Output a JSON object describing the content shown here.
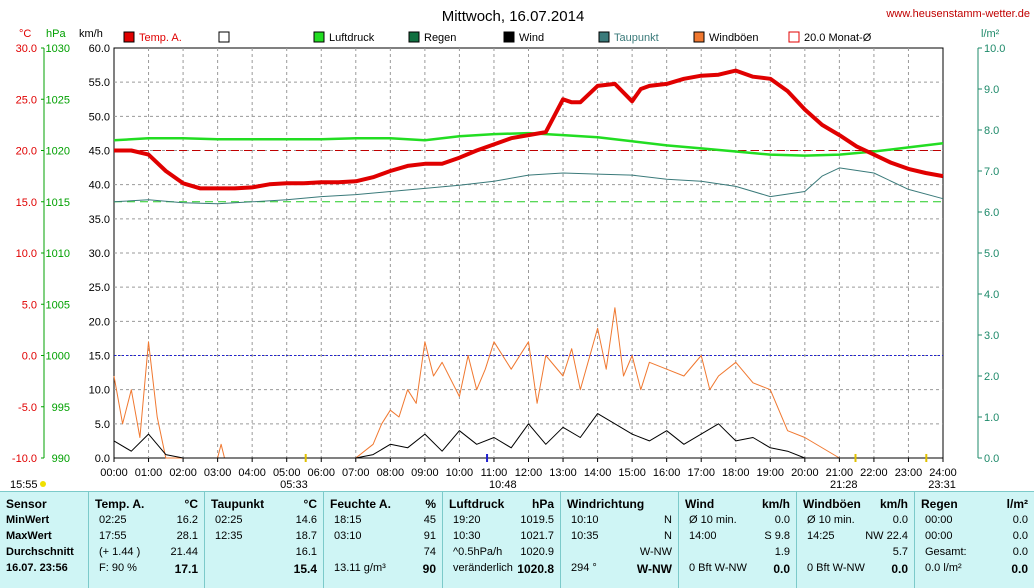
{
  "chart_data": {
    "type": "line",
    "title": "Mittwoch, 16.07.2014",
    "site": "www.heusenstamm-wetter.de",
    "unit_labels": {
      "temp": "°C",
      "pressure": "hPa",
      "wind": "km/h",
      "rain": "l/m²"
    },
    "axes": {
      "temp": {
        "min": -10,
        "max": 30,
        "ticks": [
          "30.0",
          "25.0",
          "20.0",
          "15.0",
          "10.0",
          "5.0",
          "0.0",
          "-5.0",
          "-10.0"
        ],
        "color": "#e00000"
      },
      "pressure": {
        "min": 990,
        "max": 1030,
        "ticks": [
          "1030",
          "1025",
          "1020",
          "1015",
          "1010",
          "1005",
          "1000",
          "995",
          "990"
        ],
        "color": "#00a000"
      },
      "wind": {
        "min": 0,
        "max": 60,
        "ticks": [
          "60.0",
          "55.0",
          "50.0",
          "45.0",
          "40.0",
          "35.0",
          "30.0",
          "25.0",
          "20.0",
          "15.0",
          "10.0",
          "5.0",
          "0.0"
        ],
        "color": "#000000"
      },
      "rain": {
        "min": 0,
        "max": 10,
        "ticks": [
          "10.0",
          "9.0",
          "8.0",
          "7.0",
          "6.0",
          "5.0",
          "4.0",
          "3.0",
          "2.0",
          "1.0",
          "0.0"
        ],
        "color": "#1e8a6a"
      }
    },
    "x_ticks": [
      "00:00",
      "01:00",
      "02:00",
      "03:00",
      "04:00",
      "05:00",
      "06:00",
      "07:00",
      "08:00",
      "09:00",
      "10:00",
      "11:00",
      "12:00",
      "13:00",
      "14:00",
      "15:00",
      "16:00",
      "17:00",
      "18:00",
      "19:00",
      "20:00",
      "21:00",
      "22:00",
      "23:00",
      "24:00"
    ],
    "legend": [
      {
        "label": "Temp. A.",
        "color": "#e00000",
        "style": "filled"
      },
      {
        "label": "",
        "color": "#ffffff",
        "style": "empty"
      },
      {
        "label": "Luftdruck",
        "color": "#22dd22",
        "style": "filled"
      },
      {
        "label": "Regen",
        "color": "#107040",
        "style": "filled"
      },
      {
        "label": "Wind",
        "color": "#000000",
        "style": "filled"
      },
      {
        "label": "Taupunkt",
        "color": "#3a7a7a",
        "style": "filled"
      },
      {
        "label": "Windböen",
        "color": "#f07830",
        "style": "filled"
      },
      {
        "label": "20.0 Monat-Ø",
        "color": "#e00000",
        "style": "outline"
      }
    ],
    "reference_lines": {
      "temp_month_avg": 20.0,
      "dew_line": 15.0,
      "pressure_line": 1000
    },
    "sun_markers": {
      "sunrise_prev": "15:55",
      "sunrise": "05:33",
      "noon": "10:48",
      "sunset": "21:28",
      "moon": "23:31"
    },
    "series": [
      {
        "name": "Temp. A.",
        "axis": "temp",
        "color": "#e00000",
        "x": [
          0,
          0.5,
          1,
          1.5,
          2,
          2.5,
          3,
          3.5,
          4,
          4.5,
          5,
          5.5,
          6,
          6.5,
          7,
          7.5,
          8,
          8.5,
          9,
          9.5,
          10,
          10.5,
          11,
          11.5,
          12,
          12.5,
          13,
          13.25,
          13.5,
          14,
          14.5,
          15,
          15.25,
          15.5,
          16,
          16.5,
          17,
          17.5,
          18,
          18.5,
          19,
          19.5,
          20,
          20.5,
          21,
          21.5,
          22,
          22.5,
          23,
          23.5,
          24
        ],
        "y": [
          20.0,
          20.0,
          19.6,
          18.0,
          16.8,
          16.3,
          16.3,
          16.3,
          16.4,
          16.7,
          16.8,
          16.8,
          16.9,
          16.9,
          17.0,
          17.4,
          18.0,
          18.5,
          18.7,
          18.7,
          19.3,
          20.0,
          20.6,
          21.2,
          21.5,
          21.8,
          25.0,
          24.7,
          24.7,
          26.3,
          26.5,
          24.8,
          26.0,
          26.3,
          26.5,
          27.0,
          27.3,
          27.4,
          27.8,
          27.2,
          27.0,
          25.8,
          24.0,
          22.5,
          21.5,
          20.4,
          19.6,
          18.8,
          18.2,
          17.8,
          17.5
        ]
      },
      {
        "name": "Luftdruck",
        "axis": "pressure",
        "color": "#22dd22",
        "x": [
          0,
          1,
          2,
          3,
          4,
          5,
          6,
          7,
          8,
          9,
          10,
          11,
          12,
          13,
          14,
          15,
          16,
          17,
          18,
          19,
          20,
          21,
          22,
          23,
          24
        ],
        "y": [
          1021.0,
          1021.2,
          1021.2,
          1021.1,
          1021.1,
          1021.1,
          1021.1,
          1021.2,
          1021.2,
          1021.0,
          1021.4,
          1021.6,
          1021.7,
          1021.5,
          1021.3,
          1020.9,
          1020.5,
          1020.2,
          1019.9,
          1019.6,
          1019.5,
          1019.6,
          1019.9,
          1020.3,
          1020.7
        ]
      },
      {
        "name": "Taupunkt",
        "axis": "temp",
        "color": "#3a7a7a",
        "x": [
          0,
          1,
          2,
          3,
          4,
          5,
          6,
          7,
          8,
          9,
          10,
          11,
          12,
          13,
          14,
          15,
          16,
          17,
          18,
          19,
          20,
          20.5,
          21,
          22,
          23,
          24
        ],
        "y": [
          15.0,
          15.2,
          14.9,
          14.8,
          15.0,
          15.2,
          15.5,
          15.7,
          16.0,
          16.3,
          16.6,
          17.0,
          17.6,
          17.8,
          17.7,
          17.6,
          17.2,
          17.0,
          16.5,
          15.5,
          16.0,
          17.5,
          18.3,
          17.8,
          16.2,
          15.3
        ]
      },
      {
        "name": "Wind",
        "axis": "wind",
        "color": "#000000",
        "x": [
          0,
          0.5,
          1,
          1.5,
          2,
          3,
          4,
          5,
          6,
          7,
          7.5,
          8,
          8.5,
          9,
          9.5,
          10,
          10.5,
          11,
          11.5,
          12,
          12.5,
          13,
          13.5,
          14,
          14.5,
          15,
          15.5,
          16,
          16.5,
          17,
          17.5,
          18,
          18.5,
          19,
          19.5,
          20,
          21,
          22,
          23,
          24
        ],
        "y": [
          2.5,
          1.0,
          3.5,
          0.5,
          0,
          0,
          0,
          0,
          0,
          0,
          0.5,
          2.0,
          1.5,
          3.5,
          1.0,
          4.0,
          2.0,
          3.0,
          1.5,
          5.0,
          2.0,
          4.5,
          3.0,
          6.5,
          5.0,
          3.5,
          2.5,
          4.0,
          2.0,
          3.5,
          5.0,
          2.5,
          3.0,
          1.5,
          1.0,
          0,
          0,
          0,
          0,
          0
        ]
      },
      {
        "name": "Windböen",
        "axis": "wind",
        "color": "#f07830",
        "x": [
          0,
          0.25,
          0.5,
          0.75,
          1,
          1.25,
          1.5,
          2,
          3,
          3.1,
          3.2,
          4,
          5,
          6,
          7,
          7.5,
          7.75,
          8,
          8.25,
          8.5,
          8.75,
          9,
          9.25,
          9.5,
          10,
          10.25,
          10.5,
          10.75,
          11,
          11.5,
          12,
          12.25,
          12.5,
          13,
          13.25,
          13.5,
          14,
          14.25,
          14.5,
          14.75,
          15,
          15.25,
          15.5,
          16,
          16.5,
          17,
          17.25,
          17.5,
          18,
          18.5,
          19,
          19.5,
          20,
          21,
          22,
          23,
          24
        ],
        "y": [
          12.0,
          5.0,
          10.0,
          3.0,
          17.0,
          6.0,
          0,
          0,
          0,
          2.0,
          0,
          0,
          0,
          0,
          0,
          2.0,
          5.0,
          7.0,
          6.0,
          10.0,
          8.0,
          17.0,
          12.0,
          14.0,
          9.0,
          15.0,
          10.0,
          13.0,
          17.0,
          13.0,
          17.0,
          8.0,
          15.0,
          12.0,
          16.0,
          10.0,
          19.0,
          13.0,
          22.0,
          12.0,
          15.0,
          10.0,
          14.0,
          13.0,
          12.0,
          15.0,
          10.0,
          12.0,
          14.0,
          11.0,
          10.0,
          4.0,
          3.0,
          0,
          0,
          0,
          0
        ]
      }
    ]
  },
  "panel": {
    "sensor": {
      "header": "Sensor",
      "rows": [
        "MinWert",
        "MaxWert",
        "Durchschnitt",
        "16.07. 23:56"
      ]
    },
    "temp": {
      "header": "Temp. A.",
      "unit": "°C",
      "rows": [
        [
          "02:25",
          "16.2"
        ],
        [
          "17:55",
          "28.1"
        ],
        [
          "(+ 1.44 )",
          "21.44"
        ],
        [
          "F: 90 %",
          "17.1"
        ]
      ]
    },
    "taupunkt": {
      "header": "Taupunkt",
      "unit": "°C",
      "rows": [
        [
          "02:25",
          "14.6"
        ],
        [
          "12:35",
          "18.7"
        ],
        [
          "",
          "16.1"
        ],
        [
          "",
          "15.4"
        ]
      ]
    },
    "feuchte": {
      "header": "Feuchte A.",
      "unit": "%",
      "rows": [
        [
          "18:15",
          "45"
        ],
        [
          "03:10",
          "91"
        ],
        [
          "",
          "74"
        ],
        [
          "13.11 g/m³",
          "90"
        ]
      ]
    },
    "luftdruck": {
      "header": "Luftdruck",
      "unit": "hPa",
      "rows": [
        [
          "19:20",
          "1019.5"
        ],
        [
          "10:30",
          "1021.7"
        ],
        [
          "^0.5hPa/h",
          "1020.9"
        ],
        [
          "veränderlich",
          "1020.8"
        ]
      ]
    },
    "windrichtung": {
      "header": "Windrichtung",
      "rows": [
        [
          "10:10",
          "N"
        ],
        [
          "10:35",
          "N"
        ],
        [
          "",
          "W-NW"
        ],
        [
          "294 °",
          "W-NW"
        ]
      ]
    },
    "wind": {
      "header": "Wind",
      "unit": "km/h",
      "rows": [
        [
          "Ø 10 min.",
          "0.0"
        ],
        [
          "14:00",
          "S 9.8"
        ],
        [
          "",
          "1.9"
        ],
        [
          "0 Bft W-NW",
          "0.0"
        ]
      ]
    },
    "windboeen": {
      "header": "Windböen",
      "unit": "km/h",
      "rows": [
        [
          "Ø 10 min.",
          "0.0"
        ],
        [
          "14:25",
          "NW 22.4"
        ],
        [
          "",
          "5.7"
        ],
        [
          "0 Bft W-NW",
          "0.0"
        ]
      ]
    },
    "regen": {
      "header": "Regen",
      "unit": "l/m²",
      "rows": [
        [
          "00:00",
          "0.0"
        ],
        [
          "00:00",
          "0.0"
        ],
        [
          "Gesamt:",
          "0.0"
        ],
        [
          "0.0 l/m²",
          "0.0"
        ]
      ]
    }
  }
}
